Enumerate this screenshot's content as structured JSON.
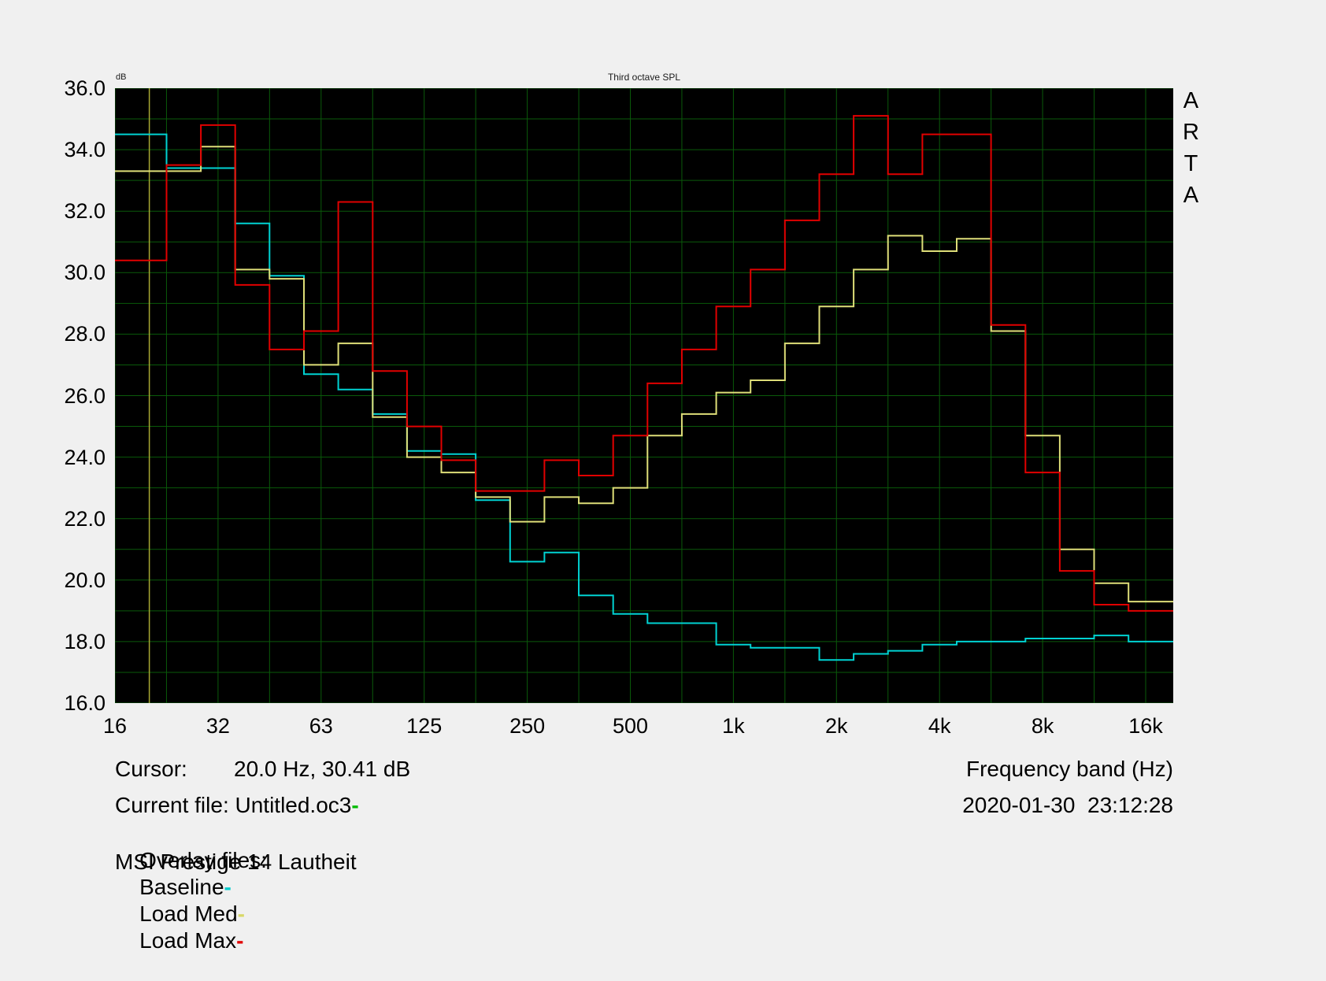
{
  "window": {
    "background": "#f0f0f0"
  },
  "plot": {
    "unit_label": "dB",
    "title": "Third octave SPL",
    "brand_letters": [
      "A",
      "R",
      "T",
      "A"
    ],
    "bg": "#000000",
    "grid_color": "#0a5a0a",
    "cursor_line_color": "#a8a832"
  },
  "axes": {
    "y_ticks": [
      "36.0",
      "34.0",
      "32.0",
      "30.0",
      "28.0",
      "26.0",
      "24.0",
      "22.0",
      "20.0",
      "18.0",
      "16.0"
    ],
    "x_ticks": [
      "16",
      "32",
      "63",
      "125",
      "250",
      "500",
      "1k",
      "2k",
      "4k",
      "8k",
      "16k"
    ]
  },
  "footer": {
    "cursor_label": "Cursor:",
    "cursor_value": "20.0 Hz, 30.41 dB",
    "x_axis_title": "Frequency band (Hz)",
    "current_file": "Current file: Untitled.oc3",
    "current_file_dash": "-",
    "current_file_dash_color": "#00bb00",
    "datetime": "2020-01-30  23:12:28",
    "overlay_label": "Overlay files:",
    "overlays": [
      {
        "name": "Baseline",
        "dash": "-",
        "color": "#00cccc"
      },
      {
        "name": "Load Med",
        "dash": "-",
        "color": "#d8d868"
      },
      {
        "name": "Load Max",
        "dash": "-",
        "color": "#e10000"
      }
    ],
    "note": "MSI Prestige 14 Lautheit"
  },
  "chart_data": {
    "type": "line",
    "subtype": "third-octave-step",
    "title": "Third octave SPL",
    "xlabel": "Frequency band (Hz)",
    "ylabel": "dB",
    "ylim": [
      16,
      36
    ],
    "y_grid_step_db": 1,
    "x_scale": "log-third-octave",
    "grid": true,
    "legend_position": "footer",
    "bands": [
      "16",
      "20",
      "25",
      "31.5",
      "40",
      "50",
      "63",
      "80",
      "100",
      "125",
      "160",
      "200",
      "250",
      "315",
      "400",
      "500",
      "630",
      "800",
      "1k",
      "1.25k",
      "1.6k",
      "2k",
      "2.5k",
      "3.15k",
      "4k",
      "5k",
      "6.3k",
      "8k",
      "10k",
      "12.5k",
      "16k"
    ],
    "series": [
      {
        "name": "Baseline",
        "color": "#00d2d2",
        "values": [
          34.5,
          34.5,
          33.4,
          33.4,
          31.6,
          29.9,
          26.7,
          26.2,
          25.4,
          24.2,
          24.1,
          22.6,
          20.6,
          20.9,
          19.5,
          18.9,
          18.6,
          18.6,
          17.9,
          17.8,
          17.8,
          17.4,
          17.6,
          17.7,
          17.9,
          18.0,
          18.0,
          18.1,
          18.1,
          18.2,
          18.0
        ]
      },
      {
        "name": "Load Med",
        "color": "#dede78",
        "values": [
          33.3,
          33.3,
          33.3,
          34.1,
          30.1,
          29.8,
          27.0,
          27.7,
          25.3,
          24.0,
          23.5,
          22.7,
          21.9,
          22.7,
          22.5,
          23.0,
          24.7,
          25.4,
          26.1,
          26.5,
          27.7,
          28.9,
          30.1,
          31.2,
          30.7,
          31.1,
          28.1,
          24.7,
          21.0,
          19.9,
          19.3
        ]
      },
      {
        "name": "Load Max",
        "color": "#e10000",
        "values": [
          30.4,
          30.4,
          33.5,
          34.8,
          29.6,
          27.5,
          28.1,
          32.3,
          26.8,
          25.0,
          23.9,
          22.9,
          22.9,
          23.9,
          23.4,
          24.7,
          26.4,
          27.5,
          28.9,
          30.1,
          31.7,
          33.2,
          35.1,
          33.2,
          34.5,
          34.5,
          28.3,
          23.5,
          20.3,
          19.2,
          19.0
        ]
      }
    ],
    "cursor": {
      "freq_hz": 20.0,
      "value_db": 30.41
    }
  }
}
